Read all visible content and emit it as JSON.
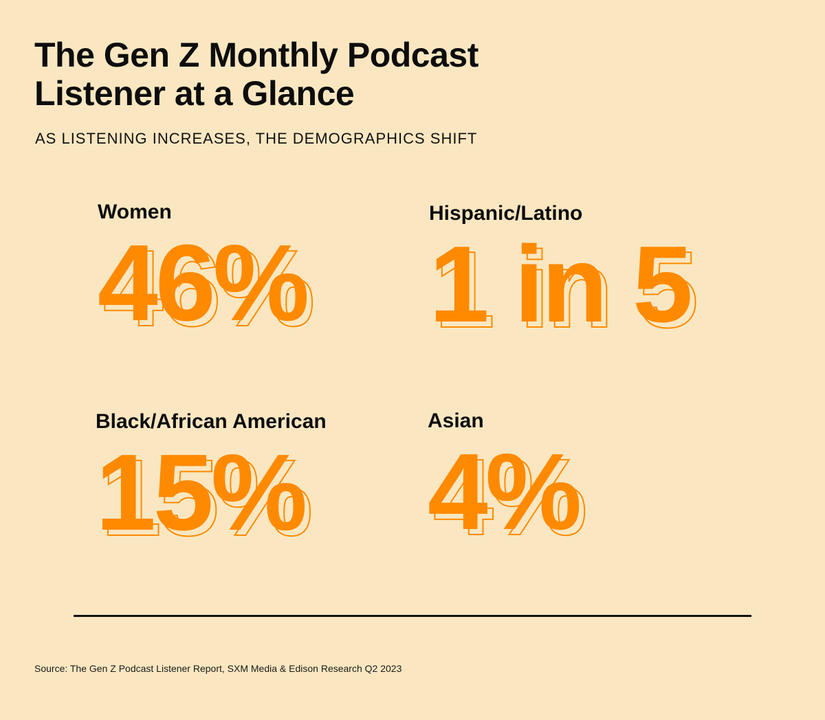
{
  "header": {
    "title_line1": "The Gen Z Monthly Podcast",
    "title_line2": "Listener at a Glance",
    "subtitle": "AS LISTENING INCREASES, THE DEMOGRAPHICS SHIFT"
  },
  "stats": [
    {
      "label": "Women",
      "value": "46%"
    },
    {
      "label": "Hispanic/Latino",
      "value": "1 in 5"
    },
    {
      "label": "Black/African American",
      "value": "15%"
    },
    {
      "label": "Asian",
      "value": "4%"
    }
  ],
  "footer": {
    "source": "Source: The Gen Z Podcast Listener Report, SXM Media & Edison Research Q2 2023"
  },
  "colors": {
    "background": "#fae7c1",
    "accent": "#ff8a00",
    "text": "#0d0d0d"
  }
}
